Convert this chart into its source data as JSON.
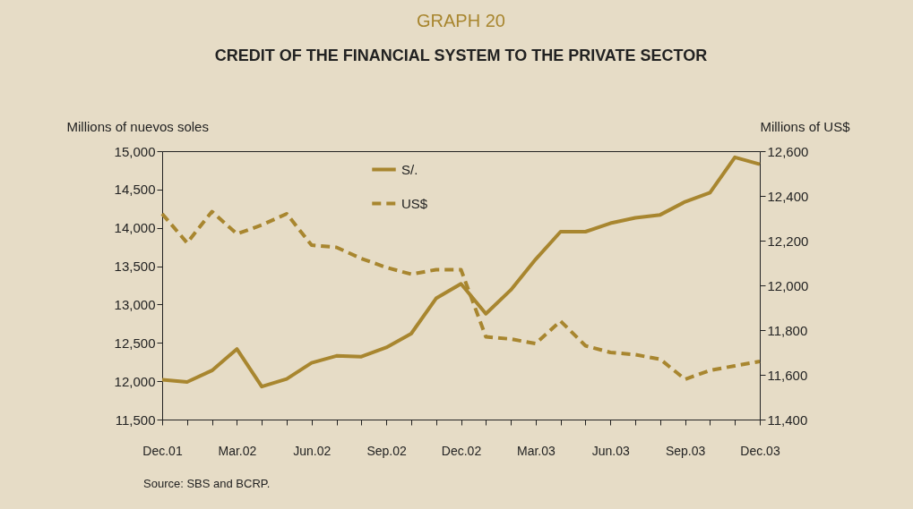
{
  "chart_data": {
    "type": "line",
    "title": "GRAPH 20",
    "subtitle": "CREDIT OF  THE FINANCIAL SYSTEM TO THE PRIVATE SECTOR",
    "ylabel": "Millions of nuevos soles",
    "y2label": "Millions of US$",
    "categories": [
      "Dec.01",
      null,
      null,
      "Mar.02",
      null,
      null,
      "Jun.02",
      null,
      null,
      "Sep.02",
      null,
      null,
      "Dec.02",
      null,
      null,
      "Mar.03",
      null,
      null,
      "Jun.03",
      null,
      null,
      "Sep.03",
      null,
      null,
      "Dec.03"
    ],
    "series": [
      {
        "name": "S/.",
        "color": "#a8862f",
        "line_style": "solid",
        "values": [
          12020,
          11990,
          12140,
          12420,
          11930,
          12030,
          12240,
          12330,
          12320,
          12440,
          12620,
          13080,
          13270,
          12880,
          13190,
          13590,
          13950,
          13950,
          14060,
          14130,
          14170,
          14340,
          14460,
          14920,
          14830
        ]
      },
      {
        "name": "US$",
        "color": "#a8862f",
        "line_style": "dashed",
        "axis": "y2",
        "values": [
          12320,
          12190,
          12330,
          12230,
          12270,
          12320,
          12180,
          12170,
          12120,
          12080,
          12050,
          12070,
          12070,
          11770,
          11760,
          11740,
          11840,
          11730,
          11700,
          11690,
          11670,
          11580,
          11620,
          11640,
          11660
        ]
      }
    ],
    "ylim": [
      11500,
      15000
    ],
    "yticks": [
      {
        "value": 11500,
        "label": "11,500"
      },
      {
        "value": 12000,
        "label": "12,000"
      },
      {
        "value": 12500,
        "label": "12,500"
      },
      {
        "value": 13000,
        "label": "13,000"
      },
      {
        "value": 13500,
        "label": "13,500"
      },
      {
        "value": 14000,
        "label": "14,000"
      },
      {
        "value": 14500,
        "label": "14,500"
      },
      {
        "value": 15000,
        "label": "15,000"
      }
    ],
    "y2lim": [
      11400,
      12600
    ],
    "y2ticks": [
      {
        "value": 11400,
        "label": "11,400"
      },
      {
        "value": 11600,
        "label": "11,600"
      },
      {
        "value": 11800,
        "label": "11,800"
      },
      {
        "value": 12000,
        "label": "12,000"
      },
      {
        "value": 12200,
        "label": "12,200"
      },
      {
        "value": 12400,
        "label": "12,400"
      },
      {
        "value": 12600,
        "label": "12,600"
      }
    ],
    "grid": false,
    "legend": "top",
    "annotations": [
      "Source: SBS and BCRP."
    ]
  }
}
